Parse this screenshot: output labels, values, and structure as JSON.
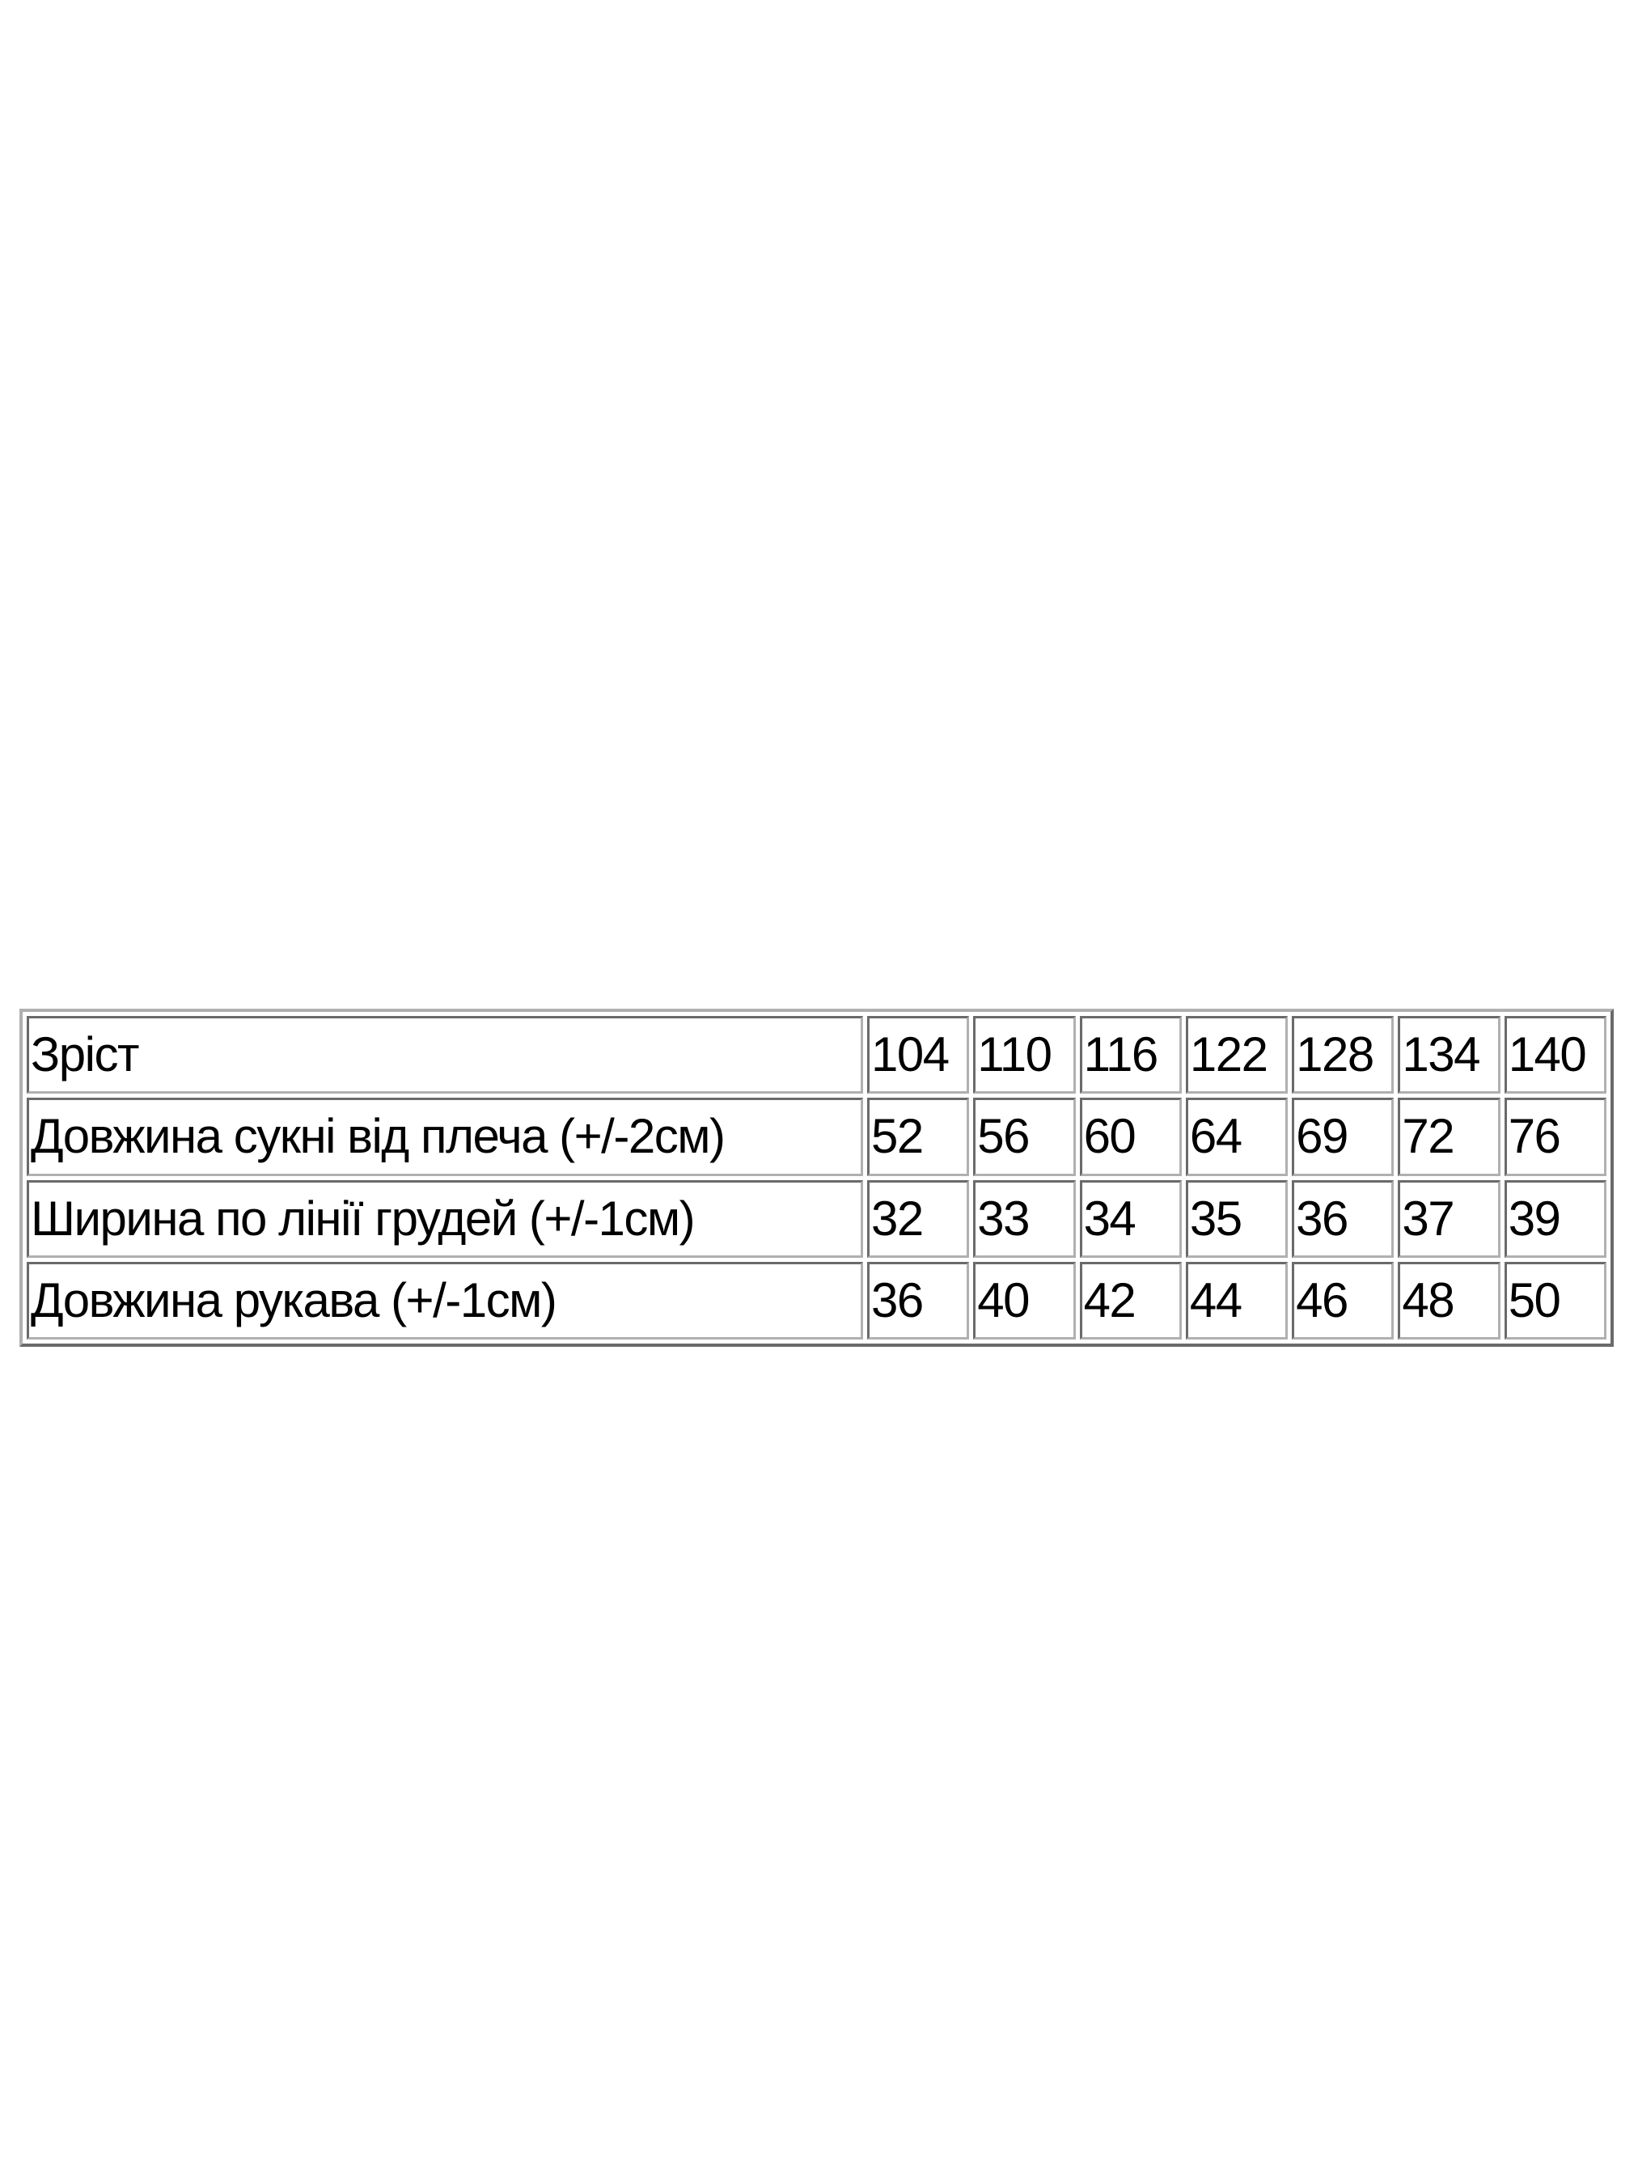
{
  "table": {
    "header": {
      "label": "Зріст",
      "sizes": [
        "104",
        "110",
        "116",
        "122",
        "128",
        "134",
        "140"
      ]
    },
    "rows": [
      {
        "label": "Довжина сукні від плеча (+/-2см)",
        "values": [
          "52",
          "56",
          "60",
          "64",
          "69",
          "72",
          "76"
        ]
      },
      {
        "label": "Ширина по лінії грудей (+/-1см)",
        "values": [
          "32",
          "33",
          "34",
          "35",
          "36",
          "37",
          "39"
        ]
      },
      {
        "label": "Довжина рукава (+/-1см)",
        "values": [
          "36",
          "40",
          "42",
          "44",
          "46",
          "48",
          "50"
        ]
      }
    ]
  }
}
